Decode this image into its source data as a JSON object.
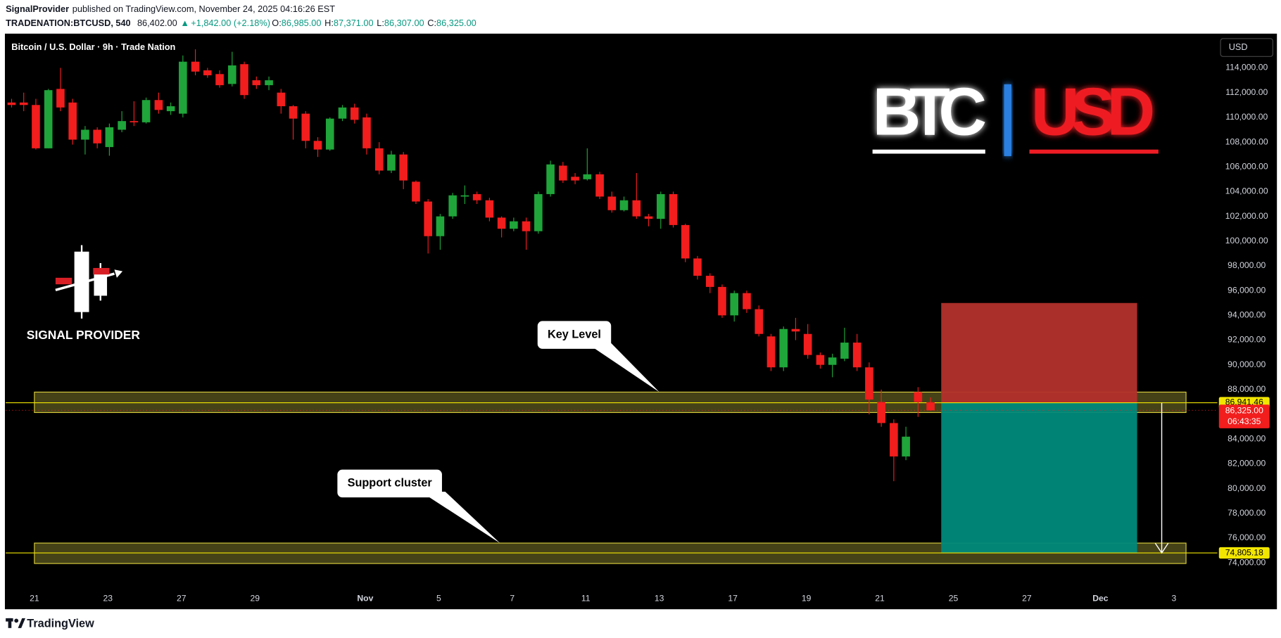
{
  "header": {
    "author": "SignalProvider",
    "published": "published on TradingView.com, November 24, 2025 04:16:26 EST",
    "symbol": "TRADENATION:BTCUSD,",
    "interval": "540",
    "price": "86,402.00",
    "change": "+1,842.00 (+2.18%)",
    "ohlc": [
      {
        "label": "O:",
        "value": "86,985.00"
      },
      {
        "label": "H:",
        "value": "87,371.00"
      },
      {
        "label": "L:",
        "value": "86,307.00"
      },
      {
        "label": "C:",
        "value": "86,325.00"
      }
    ]
  },
  "chart_data": {
    "type": "candlestick",
    "title": "Bitcoin / U.S. Dollar · 9h · Trade Nation",
    "currency": "USD",
    "up_color": "#1fa53a",
    "down_color": "#f21d1d",
    "grid": false,
    "x": [
      -0.62,
      -0.29,
      0.04,
      0.38,
      0.71,
      1.04,
      1.38,
      1.71,
      2.04,
      2.38,
      2.71,
      3.04,
      3.38,
      3.71,
      4.04,
      4.38,
      4.71,
      5.04,
      5.38,
      5.71,
      6.04,
      6.38,
      6.71,
      7.04,
      7.38,
      7.71,
      8.04,
      8.38,
      8.71,
      9.04,
      9.38,
      9.71,
      10.04,
      10.38,
      10.71,
      11.04,
      11.38,
      11.71,
      12.04,
      12.38,
      12.71,
      13.04,
      13.38,
      13.71,
      14.04,
      14.38,
      14.71,
      15.04,
      15.38,
      15.71,
      16.04,
      16.38,
      16.71,
      17.04,
      17.38,
      17.71,
      18.04,
      18.38,
      18.71,
      19.04,
      19.38,
      19.71,
      20.04,
      20.38,
      20.71,
      21.04,
      21.38,
      21.71,
      22.04,
      22.38,
      22.71,
      23.04,
      23.38,
      23.71,
      24.04,
      24.38
    ],
    "open": [
      111200,
      111200,
      111000,
      107500,
      112300,
      111200,
      108200,
      109000,
      107600,
      109000,
      109700,
      109600,
      111400,
      110500,
      110300,
      114500,
      113800,
      113500,
      112700,
      114300,
      113000,
      112600,
      112000,
      110900,
      110300,
      108100,
      107400,
      109900,
      110800,
      110000,
      107500,
      105700,
      107000,
      104800,
      103200,
      100400,
      102000,
      103600,
      103800,
      103300,
      101900,
      101000,
      101600,
      100800,
      103800,
      106100,
      105200,
      105000,
      105400,
      103600,
      102500,
      103300,
      102000,
      101800,
      103800,
      101300,
      98600,
      97200,
      96300,
      94000,
      95800,
      94500,
      92300,
      89800,
      92900,
      92500,
      90800,
      90000,
      90500,
      91800,
      89800,
      87000,
      85300,
      82600,
      87800,
      86985
    ],
    "high": [
      111500,
      112000,
      111500,
      112300,
      114000,
      111500,
      109300,
      109200,
      109500,
      110500,
      111300,
      111600,
      112000,
      111200,
      115000,
      115500,
      114000,
      113800,
      115300,
      114500,
      113300,
      113300,
      112300,
      111000,
      110500,
      108400,
      110000,
      111000,
      111100,
      110300,
      108000,
      107300,
      107200,
      104900,
      103400,
      102200,
      103900,
      104500,
      104000,
      103500,
      102000,
      101900,
      101900,
      104000,
      106500,
      106400,
      105500,
      107500,
      105600,
      104000,
      103600,
      105500,
      102200,
      104000,
      104000,
      101400,
      98800,
      97400,
      96500,
      96000,
      96000,
      94800,
      92500,
      93100,
      93800,
      93300,
      91000,
      90900,
      93000,
      92500,
      90200,
      88000,
      85600,
      85000,
      88200,
      87371
    ],
    "low": [
      110800,
      110500,
      107400,
      107500,
      110500,
      107800,
      107000,
      107500,
      106900,
      108800,
      109300,
      109500,
      110300,
      110200,
      110000,
      113400,
      113200,
      112400,
      112500,
      111500,
      112300,
      112200,
      110300,
      108200,
      107500,
      106800,
      107300,
      109700,
      109500,
      107000,
      105400,
      105500,
      104200,
      103000,
      99000,
      99300,
      101800,
      103000,
      103000,
      101600,
      100300,
      100800,
      99300,
      100600,
      103600,
      104700,
      104600,
      104900,
      103400,
      102300,
      102400,
      101800,
      101200,
      101000,
      101100,
      98300,
      96900,
      95800,
      93800,
      93500,
      94200,
      92300,
      89500,
      89500,
      92000,
      90500,
      89700,
      89000,
      90300,
      89500,
      86000,
      85000,
      80600,
      82300,
      85800,
      86307
    ],
    "close": [
      111000,
      111000,
      107500,
      112200,
      110800,
      108200,
      109000,
      107900,
      109200,
      109700,
      109600,
      111400,
      110600,
      110900,
      114500,
      113700,
      113400,
      112600,
      114200,
      111800,
      112600,
      113000,
      110900,
      109900,
      108100,
      107400,
      109900,
      110800,
      109800,
      107500,
      105700,
      107000,
      104900,
      103200,
      100400,
      102000,
      103700,
      103700,
      103300,
      101900,
      101000,
      101600,
      100800,
      103800,
      106200,
      104900,
      104900,
      105400,
      103600,
      102500,
      103300,
      102000,
      101800,
      103800,
      101300,
      98600,
      97200,
      96300,
      94000,
      95800,
      94500,
      92500,
      89800,
      92900,
      92700,
      90800,
      90000,
      90600,
      91800,
      89800,
      87200,
      85300,
      82600,
      84200,
      87000,
      86325
    ],
    "xlim": [
      -0.78,
      32.18
    ],
    "xticks": [
      {
        "value": 0,
        "label": "21"
      },
      {
        "value": 2,
        "label": "23"
      },
      {
        "value": 4,
        "label": "27"
      },
      {
        "value": 6,
        "label": "29"
      },
      {
        "value": 9,
        "label": "Nov"
      },
      {
        "value": 11,
        "label": "5"
      },
      {
        "value": 13,
        "label": "7"
      },
      {
        "value": 15,
        "label": "11"
      },
      {
        "value": 17,
        "label": "13"
      },
      {
        "value": 19,
        "label": "17"
      },
      {
        "value": 21,
        "label": "19"
      },
      {
        "value": 23,
        "label": "21"
      },
      {
        "value": 25,
        "label": "25"
      },
      {
        "value": 27,
        "label": "27"
      },
      {
        "value": 29,
        "label": "Dec"
      },
      {
        "value": 31,
        "label": "3"
      }
    ],
    "ylim": [
      72100,
      116700
    ],
    "yticks": [
      {
        "value": 74000,
        "label": "74,000.00"
      },
      {
        "value": 76000,
        "label": "76,000.00"
      },
      {
        "value": 78000,
        "label": "78,000.00"
      },
      {
        "value": 80000,
        "label": "80,000.00"
      },
      {
        "value": 82000,
        "label": "82,000.00"
      },
      {
        "value": 84000,
        "label": "84,000.00"
      },
      {
        "value": 86000,
        "label": "86,000.00"
      },
      {
        "value": 88000,
        "label": "88,000.00"
      },
      {
        "value": 90000,
        "label": "90,000.00"
      },
      {
        "value": 92000,
        "label": "92,000.00"
      },
      {
        "value": 94000,
        "label": "94,000.00"
      },
      {
        "value": 96000,
        "label": "96,000.00"
      },
      {
        "value": 98000,
        "label": "98,000.00"
      },
      {
        "value": 100000,
        "label": "100,000.00"
      },
      {
        "value": 102000,
        "label": "102,000.00"
      },
      {
        "value": 104000,
        "label": "104,000.00"
      },
      {
        "value": 106000,
        "label": "106,000.00"
      },
      {
        "value": 108000,
        "label": "108,000.00"
      },
      {
        "value": 110000,
        "label": "110,000.00"
      },
      {
        "value": 112000,
        "label": "112,000.00"
      },
      {
        "value": 114000,
        "label": "114,000.00"
      }
    ],
    "zones": [
      {
        "x": [
          0,
          31.33
        ],
        "y": [
          86150,
          87800
        ],
        "color": "#5c5820"
      },
      {
        "x": [
          0,
          31.33
        ],
        "y": [
          73950,
          75600
        ],
        "color": "#5c5820"
      }
    ],
    "zone_border": "#d8cc3c",
    "levels": [
      {
        "value": 86941.46,
        "label": "86,941.46",
        "color": "#f2e600"
      },
      {
        "value": 74805.18,
        "label": "74,805.18",
        "color": "#f2e600"
      }
    ],
    "position": {
      "x": [
        24.67,
        30
      ],
      "entry": 86941.46,
      "stop": 95000,
      "target": 74805.18,
      "risk_color": "#b3302b",
      "reward_color": "#00897b"
    },
    "last_price": {
      "value": 86325,
      "label": "86,325.00",
      "countdown": "06:43:35",
      "color": "#f21d1d"
    },
    "annotations": [
      {
        "text": "Key Level"
      },
      {
        "text": "Support cluster"
      }
    ],
    "overlay": {
      "left": "BTC",
      "right": "USD"
    },
    "logo_text": "SIGNAL PROVIDER"
  },
  "footer": {
    "brand": "TradingView"
  }
}
